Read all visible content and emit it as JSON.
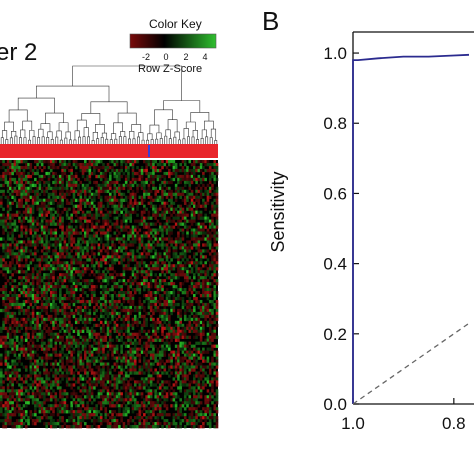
{
  "panel_a": {
    "title_fragment": "er 2",
    "color_key": {
      "title": "Color Key",
      "tick_labels": [
        "-2",
        "0",
        "2",
        "4"
      ],
      "label": "Row Z-Score",
      "colors": [
        "#7a0a0a",
        "#000000",
        "#2fbf2f"
      ]
    },
    "annotation_bar_color": "#e8262b",
    "annotation_mark_color": "#3b3bd0"
  },
  "chart_data": [
    {
      "type": "heatmap",
      "colorbar": {
        "label": "Row Z-Score",
        "ticks": [
          -2,
          0,
          2,
          4
        ],
        "range": [
          -3,
          5
        ]
      },
      "colors": {
        "low": "#a01010",
        "mid": "#000000",
        "high": "#3ccc3c"
      }
    },
    {
      "type": "line",
      "panel_label": "B",
      "ylabel": "Sensitivity",
      "xlabel": "",
      "x_reversed": true,
      "xlim": [
        1.0,
        0.76
      ],
      "ylim": [
        0.0,
        1.06
      ],
      "x_tick_labels": [
        "1.0",
        "0.8"
      ],
      "x_ticks": [
        1.0,
        0.8
      ],
      "y_ticks": [
        0.0,
        0.2,
        0.4,
        0.6,
        0.8,
        1.0
      ],
      "y_tick_labels": [
        "0.0",
        "0.2",
        "0.4",
        "0.6",
        "0.8",
        "1.0"
      ],
      "series": [
        {
          "style": "solid",
          "color": "#2b2b8f",
          "x": [
            1.0,
            1.0,
            0.99,
            0.95,
            0.9,
            0.85,
            0.8,
            0.77
          ],
          "y": [
            0.0,
            0.98,
            0.98,
            0.985,
            0.99,
            0.99,
            0.993,
            0.995
          ]
        },
        {
          "style": "dashed",
          "color": "#666666",
          "x": [
            1.0,
            0.77
          ],
          "y": [
            0.0,
            0.23
          ]
        }
      ]
    }
  ]
}
